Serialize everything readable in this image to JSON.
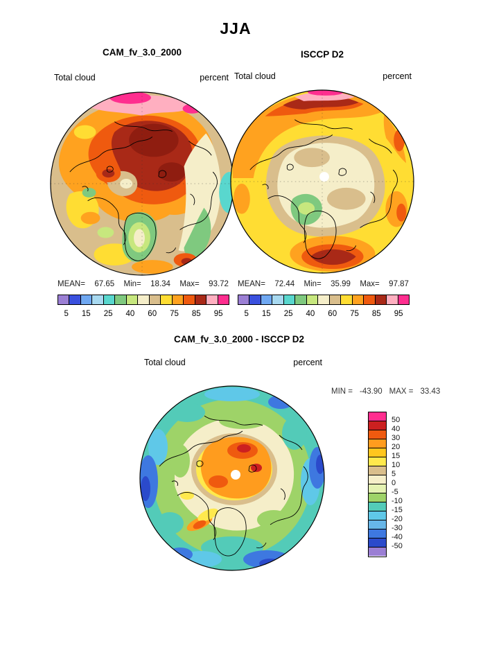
{
  "title": "JJA",
  "panels": {
    "cam": {
      "title": "CAM_fv_3.0_2000",
      "field": "Total cloud",
      "units": "percent",
      "stats": {
        "mean_label": "MEAN=",
        "mean": "67.65",
        "min_label": "Min=",
        "min": "18.34",
        "max_label": "Max=",
        "max": "93.72"
      }
    },
    "isccp": {
      "title": "ISCCP D2",
      "field": "Total cloud",
      "units": "percent",
      "stats": {
        "mean_label": "MEAN=",
        "mean": "72.44",
        "min_label": "Min=",
        "min": "35.99",
        "max_label": "Max=",
        "max": "97.87"
      }
    }
  },
  "colorbar": {
    "colors": [
      "#9B7FD4",
      "#3A50DE",
      "#6FA8F2",
      "#A8D9F0",
      "#59D7CE",
      "#7FC97F",
      "#C7E77E",
      "#F5EEC9",
      "#D9BE8C",
      "#FFDD33",
      "#FFA21F",
      "#EF5A0F",
      "#A92917",
      "#FFAFC0",
      "#FF2E8F"
    ],
    "ticks": [
      "5",
      "15",
      "25",
      "40",
      "60",
      "75",
      "85",
      "95"
    ]
  },
  "diff": {
    "title": "CAM_fv_3.0_2000 - ISCCP D2",
    "field": "Total cloud",
    "units": "percent",
    "minmax": {
      "min_label": "MIN =",
      "min": "-43.90",
      "max_label": "MAX =",
      "max": "33.43"
    },
    "colorbar": {
      "colors": [
        "#FF2E8F",
        "#CC2020",
        "#EF5A0F",
        "#FF9C1E",
        "#FFC61E",
        "#FFE94D",
        "#D9BE8C",
        "#F5EEC9",
        "#E4F2B2",
        "#9ED368",
        "#53CBB8",
        "#5FC8E8",
        "#67B6E8",
        "#3E78E0",
        "#2B4ACB",
        "#9B7FD4"
      ],
      "ticks": [
        "50",
        "40",
        "30",
        "20",
        "15",
        "10",
        "5",
        "0",
        "-5",
        "-10",
        "-15",
        "-20",
        "-30",
        "-40",
        "-50"
      ]
    }
  },
  "chart_data": [
    {
      "type": "heatmap",
      "subtype": "filled-contour-polar-map",
      "projection": "north-polar-stereographic",
      "season": "JJA",
      "title": "CAM_fv_3.0_2000",
      "variable": "Total cloud",
      "units": "percent",
      "contour_levels": [
        5,
        15,
        25,
        40,
        60,
        75,
        85,
        95
      ],
      "palette_low_to_high": [
        "#9B7FD4",
        "#3A50DE",
        "#6FA8F2",
        "#A8D9F0",
        "#59D7CE",
        "#7FC97F",
        "#C7E77E",
        "#F5EEC9",
        "#D9BE8C",
        "#FFDD33",
        "#FFA21F",
        "#EF5A0F",
        "#A92917",
        "#FFAFC0",
        "#FF2E8F"
      ],
      "stats": {
        "mean": 67.65,
        "min": 18.34,
        "max": 93.72
      },
      "legend_position": "bottom",
      "notes": "High cloud (dark red / pink, 75-95%) over central Arctic and Siberian sector; tan/cream (40-60%) band on right; green patches (25-40%) near Greenland; small cyan (15-25%) at right limb"
    },
    {
      "type": "heatmap",
      "subtype": "filled-contour-polar-map",
      "projection": "north-polar-stereographic",
      "season": "JJA",
      "title": "ISCCP D2",
      "variable": "Total cloud",
      "units": "percent",
      "contour_levels": [
        5,
        15,
        25,
        40,
        60,
        75,
        85,
        95
      ],
      "palette_low_to_high": [
        "#9B7FD4",
        "#3A50DE",
        "#6FA8F2",
        "#A8D9F0",
        "#59D7CE",
        "#7FC97F",
        "#C7E77E",
        "#F5EEC9",
        "#D9BE8C",
        "#FFDD33",
        "#FFA21F",
        "#EF5A0F",
        "#A92917",
        "#FFAFC0",
        "#FF2E8F"
      ],
      "stats": {
        "mean": 72.44,
        "min": 35.99,
        "max": 97.87
      },
      "legend_position": "bottom",
      "notes": "Cream/tan (40-60%) over central Arctic with white missing-data dot at pole; yellow (60-75%) background; orange/red and pink band (85-95%+) along top limb; dark red blob at bottom limb; green patch below center"
    },
    {
      "type": "heatmap",
      "subtype": "filled-contour-polar-map-difference",
      "projection": "north-polar-stereographic",
      "season": "JJA",
      "title": "CAM_fv_3.0_2000 - ISCCP D2",
      "variable": "Total cloud",
      "units": "percent",
      "contour_levels": [
        -50,
        -40,
        -30,
        -20,
        -15,
        -10,
        -5,
        0,
        5,
        10,
        15,
        20,
        30,
        40,
        50
      ],
      "palette_high_to_low": [
        "#FF2E8F",
        "#CC2020",
        "#EF5A0F",
        "#FF9C1E",
        "#FFC61E",
        "#FFE94D",
        "#D9BE8C",
        "#F5EEC9",
        "#E4F2B2",
        "#9ED368",
        "#53CBB8",
        "#5FC8E8",
        "#67B6E8",
        "#3E78E0",
        "#2B4ACB",
        "#9B7FD4"
      ],
      "stats": {
        "min": -43.9,
        "max": 33.43
      },
      "legend_position": "right",
      "notes": "Positive bias (orange/red, +20 to +40) over central Arctic with white dot at pole; near-zero cream ring; negative bias (green/teal/blue, -5 to -40) toward the outer limb"
    }
  ]
}
